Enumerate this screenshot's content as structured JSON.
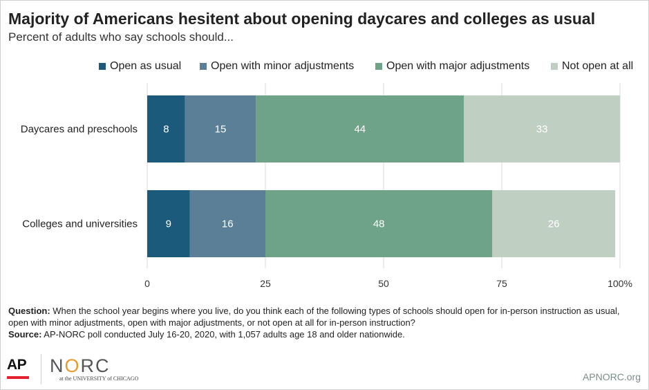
{
  "title": "Majority of Americans hesitent about opening daycares and colleges as usual",
  "subtitle": "Percent of adults who say schools should...",
  "legend": [
    {
      "label": "Open as usual",
      "color": "#1b5a7a"
    },
    {
      "label": "Open with minor adjustments",
      "color": "#5a7f96"
    },
    {
      "label": "Open with major adjustments",
      "color": "#6fa388"
    },
    {
      "label": "Not open at all",
      "color": "#bfcfc2"
    }
  ],
  "chart_data": {
    "type": "bar",
    "orientation": "horizontal",
    "stacked": true,
    "categories": [
      "Daycares and preschools",
      "Colleges and universities"
    ],
    "series": [
      {
        "name": "Open as usual",
        "values": [
          8,
          9
        ],
        "color": "#1b5a7a"
      },
      {
        "name": "Open with minor adjustments",
        "values": [
          15,
          16
        ],
        "color": "#5a7f96"
      },
      {
        "name": "Open with major adjustments",
        "values": [
          44,
          48
        ],
        "color": "#6fa388"
      },
      {
        "name": "Not open at all",
        "values": [
          33,
          26
        ],
        "color": "#bfcfc2"
      }
    ],
    "xlim": [
      0,
      100
    ],
    "xticks": [
      "0",
      "25",
      "50",
      "75",
      "100%"
    ],
    "grid": true,
    "legend_position": "top"
  },
  "footnote": {
    "question_label": "Question:",
    "question_text": " When the school year begins where you live, do you think each of the following types of schools should open for in-person instruction as usual, open with minor adjustments, open with major adjustments, or not open at all for in-person instruction?",
    "source_label": "Source:",
    "source_text": " AP-NORC poll conducted July 16-20, 2020, with 1,057 adults age 18 and older nationwide."
  },
  "logos": {
    "ap": "AP",
    "norc": "NORC",
    "norc_sub": "at the UNIVERSITY of CHICAGO"
  },
  "site": "APNORC.org"
}
